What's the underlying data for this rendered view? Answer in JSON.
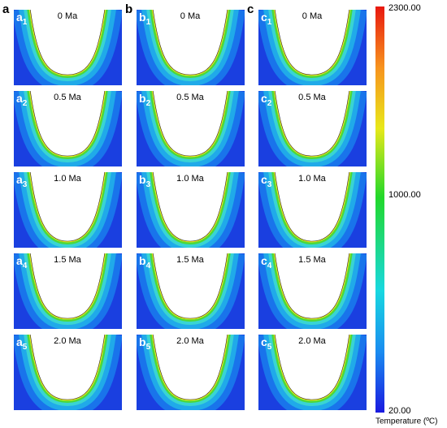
{
  "columns": [
    {
      "label": "a",
      "panels": [
        {
          "id": "a",
          "sub": "1",
          "time": "0 Ma"
        },
        {
          "id": "a",
          "sub": "2",
          "time": "0.5 Ma"
        },
        {
          "id": "a",
          "sub": "3",
          "time": "1.0 Ma"
        },
        {
          "id": "a",
          "sub": "4",
          "time": "1.5 Ma"
        },
        {
          "id": "a",
          "sub": "5",
          "time": "2.0 Ma"
        }
      ]
    },
    {
      "label": "b",
      "panels": [
        {
          "id": "b",
          "sub": "1",
          "time": "0 Ma"
        },
        {
          "id": "b",
          "sub": "2",
          "time": "0.5 Ma"
        },
        {
          "id": "b",
          "sub": "3",
          "time": "1.0 Ma"
        },
        {
          "id": "b",
          "sub": "4",
          "time": "1.5 Ma"
        },
        {
          "id": "b",
          "sub": "5",
          "time": "2.0 Ma"
        }
      ]
    },
    {
      "label": "c",
      "panels": [
        {
          "id": "c",
          "sub": "1",
          "time": "0 Ma"
        },
        {
          "id": "c",
          "sub": "2",
          "time": "0.5 Ma"
        },
        {
          "id": "c",
          "sub": "3",
          "time": "1.0 Ma"
        },
        {
          "id": "c",
          "sub": "4",
          "time": "1.5 Ma"
        },
        {
          "id": "c",
          "sub": "5",
          "time": "2.0 Ma"
        }
      ]
    }
  ],
  "colorbar": {
    "labels": [
      "2300.00",
      "1000.00",
      "20.00"
    ],
    "title": "Temperature (ºC)"
  }
}
